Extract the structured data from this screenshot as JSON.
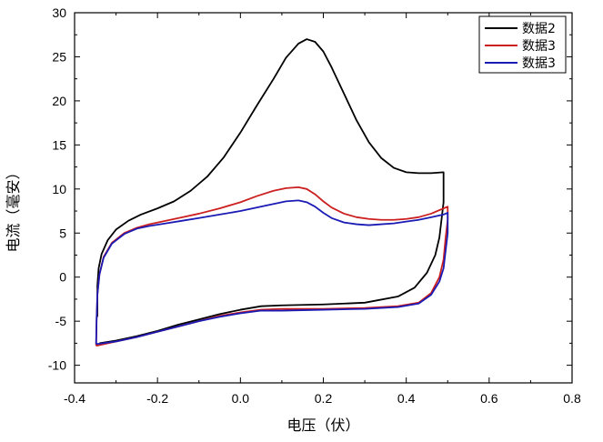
{
  "chart_data": {
    "type": "line",
    "title": "",
    "xlabel": "电压（伏）",
    "ylabel": "电流（毫安）",
    "xlim": [
      -0.4,
      0.8
    ],
    "ylim": [
      -12,
      30
    ],
    "x_ticks": [
      "-0.4",
      "-0.2",
      "0.0",
      "0.2",
      "0.4",
      "0.6",
      "0.8"
    ],
    "y_ticks": [
      "-10",
      "-5",
      "0",
      "5",
      "10",
      "15",
      "20",
      "25",
      "30"
    ],
    "grid": false,
    "legend_position": "top-right",
    "series": [
      {
        "name": "数据2",
        "color": "#000000",
        "points": [
          [
            -0.345,
            -4.5
          ],
          [
            -0.345,
            -1.0
          ],
          [
            -0.342,
            1.0
          ],
          [
            -0.335,
            2.6
          ],
          [
            -0.32,
            4.2
          ],
          [
            -0.3,
            5.4
          ],
          [
            -0.27,
            6.4
          ],
          [
            -0.24,
            7.1
          ],
          [
            -0.2,
            7.8
          ],
          [
            -0.16,
            8.6
          ],
          [
            -0.12,
            9.8
          ],
          [
            -0.08,
            11.4
          ],
          [
            -0.04,
            13.6
          ],
          [
            0.0,
            16.4
          ],
          [
            0.04,
            19.5
          ],
          [
            0.08,
            22.5
          ],
          [
            0.11,
            24.9
          ],
          [
            0.14,
            26.5
          ],
          [
            0.16,
            27.0
          ],
          [
            0.18,
            26.7
          ],
          [
            0.2,
            25.6
          ],
          [
            0.22,
            23.8
          ],
          [
            0.25,
            20.8
          ],
          [
            0.28,
            17.8
          ],
          [
            0.31,
            15.3
          ],
          [
            0.34,
            13.5
          ],
          [
            0.37,
            12.4
          ],
          [
            0.4,
            11.9
          ],
          [
            0.43,
            11.8
          ],
          [
            0.46,
            11.8
          ],
          [
            0.49,
            11.9
          ],
          [
            0.49,
            10.0
          ],
          [
            0.49,
            8.5
          ],
          [
            0.485,
            6.5
          ],
          [
            0.48,
            4.5
          ],
          [
            0.47,
            2.5
          ],
          [
            0.45,
            0.5
          ],
          [
            0.42,
            -1.2
          ],
          [
            0.38,
            -2.2
          ],
          [
            0.3,
            -2.9
          ],
          [
            0.2,
            -3.1
          ],
          [
            0.1,
            -3.2
          ],
          [
            0.05,
            -3.3
          ],
          [
            0.0,
            -3.7
          ],
          [
            -0.05,
            -4.2
          ],
          [
            -0.1,
            -4.8
          ],
          [
            -0.15,
            -5.4
          ],
          [
            -0.2,
            -6.1
          ],
          [
            -0.25,
            -6.7
          ],
          [
            -0.3,
            -7.2
          ],
          [
            -0.34,
            -7.5
          ]
        ]
      },
      {
        "name": "数据3",
        "color": "#cc1f1f",
        "points": [
          [
            -0.348,
            -7.8
          ],
          [
            -0.347,
            -5.0
          ],
          [
            -0.345,
            -2.0
          ],
          [
            -0.34,
            0.3
          ],
          [
            -0.33,
            2.3
          ],
          [
            -0.31,
            3.9
          ],
          [
            -0.28,
            5.0
          ],
          [
            -0.25,
            5.6
          ],
          [
            -0.22,
            6.0
          ],
          [
            -0.18,
            6.4
          ],
          [
            -0.14,
            6.8
          ],
          [
            -0.1,
            7.2
          ],
          [
            -0.05,
            7.8
          ],
          [
            0.0,
            8.5
          ],
          [
            0.04,
            9.2
          ],
          [
            0.08,
            9.8
          ],
          [
            0.11,
            10.1
          ],
          [
            0.14,
            10.2
          ],
          [
            0.16,
            10.0
          ],
          [
            0.18,
            9.4
          ],
          [
            0.2,
            8.6
          ],
          [
            0.22,
            7.9
          ],
          [
            0.25,
            7.2
          ],
          [
            0.28,
            6.8
          ],
          [
            0.31,
            6.6
          ],
          [
            0.34,
            6.5
          ],
          [
            0.37,
            6.5
          ],
          [
            0.4,
            6.6
          ],
          [
            0.43,
            6.8
          ],
          [
            0.46,
            7.2
          ],
          [
            0.49,
            7.8
          ],
          [
            0.5,
            8.0
          ],
          [
            0.5,
            6.5
          ],
          [
            0.495,
            4.5
          ],
          [
            0.49,
            2.0
          ],
          [
            0.48,
            0.0
          ],
          [
            0.46,
            -1.8
          ],
          [
            0.43,
            -2.9
          ],
          [
            0.38,
            -3.3
          ],
          [
            0.3,
            -3.5
          ],
          [
            0.2,
            -3.6
          ],
          [
            0.1,
            -3.6
          ],
          [
            0.05,
            -3.7
          ],
          [
            0.0,
            -4.0
          ],
          [
            -0.05,
            -4.4
          ],
          [
            -0.1,
            -5.0
          ],
          [
            -0.15,
            -5.6
          ],
          [
            -0.2,
            -6.2
          ],
          [
            -0.25,
            -6.8
          ],
          [
            -0.3,
            -7.3
          ],
          [
            -0.348,
            -7.8
          ]
        ]
      },
      {
        "name": "数据3",
        "color": "#1a1ab4",
        "points": [
          [
            -0.348,
            -7.6
          ],
          [
            -0.347,
            -5.0
          ],
          [
            -0.345,
            -2.0
          ],
          [
            -0.34,
            0.3
          ],
          [
            -0.33,
            2.2
          ],
          [
            -0.31,
            3.8
          ],
          [
            -0.28,
            4.9
          ],
          [
            -0.25,
            5.5
          ],
          [
            -0.22,
            5.8
          ],
          [
            -0.18,
            6.1
          ],
          [
            -0.14,
            6.4
          ],
          [
            -0.1,
            6.7
          ],
          [
            -0.05,
            7.1
          ],
          [
            0.0,
            7.5
          ],
          [
            0.04,
            7.9
          ],
          [
            0.08,
            8.3
          ],
          [
            0.11,
            8.6
          ],
          [
            0.14,
            8.7
          ],
          [
            0.16,
            8.5
          ],
          [
            0.18,
            8.0
          ],
          [
            0.2,
            7.3
          ],
          [
            0.22,
            6.7
          ],
          [
            0.25,
            6.2
          ],
          [
            0.28,
            6.0
          ],
          [
            0.31,
            5.9
          ],
          [
            0.34,
            6.0
          ],
          [
            0.37,
            6.1
          ],
          [
            0.4,
            6.3
          ],
          [
            0.43,
            6.5
          ],
          [
            0.46,
            6.8
          ],
          [
            0.49,
            7.1
          ],
          [
            0.5,
            7.3
          ],
          [
            0.5,
            5.0
          ],
          [
            0.495,
            3.0
          ],
          [
            0.49,
            1.0
          ],
          [
            0.48,
            -0.5
          ],
          [
            0.46,
            -2.0
          ],
          [
            0.43,
            -3.0
          ],
          [
            0.38,
            -3.4
          ],
          [
            0.3,
            -3.6
          ],
          [
            0.2,
            -3.7
          ],
          [
            0.1,
            -3.8
          ],
          [
            0.05,
            -3.8
          ],
          [
            0.0,
            -4.1
          ],
          [
            -0.05,
            -4.5
          ],
          [
            -0.1,
            -5.0
          ],
          [
            -0.15,
            -5.6
          ],
          [
            -0.2,
            -6.2
          ],
          [
            -0.25,
            -6.8
          ],
          [
            -0.3,
            -7.3
          ],
          [
            -0.348,
            -7.6
          ]
        ]
      }
    ]
  }
}
